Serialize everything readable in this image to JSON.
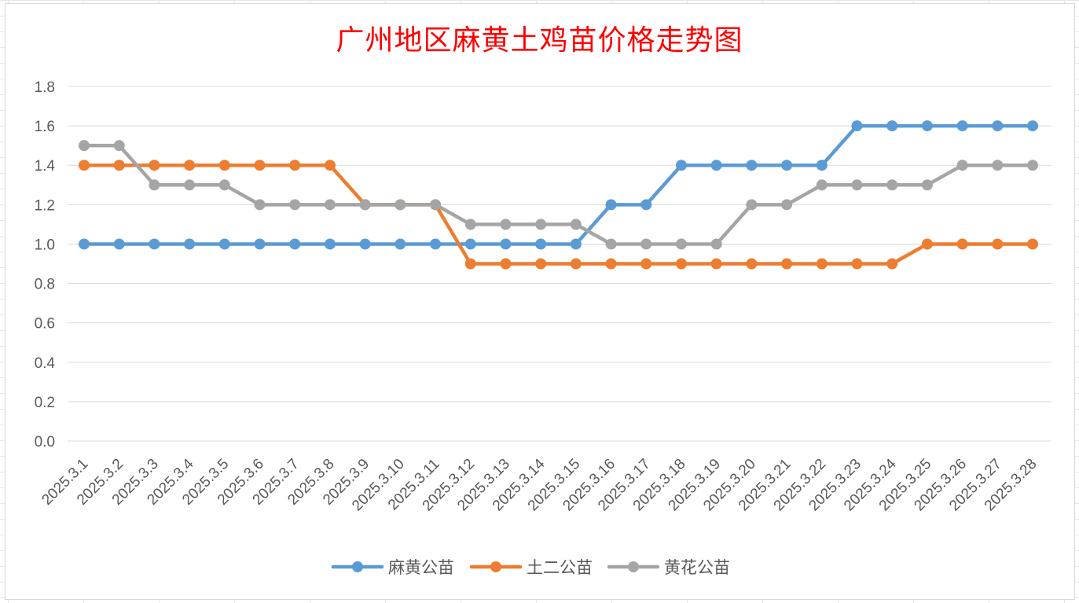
{
  "chart_data": {
    "type": "line",
    "title": "广州地区麻黄土鸡苗价格走势图",
    "xlabel": "",
    "ylabel": "",
    "categories": [
      "2025.3.1",
      "2025.3.2",
      "2025.3.3",
      "2025.3.4",
      "2025.3.5",
      "2025.3.6",
      "2025.3.7",
      "2025.3.8",
      "2025.3.9",
      "2025.3.10",
      "2025.3.11",
      "2025.3.12",
      "2025.3.13",
      "2025.3.14",
      "2025.3.15",
      "2025.3.16",
      "2025.3.17",
      "2025.3.18",
      "2025.3.19",
      "2025.3.20",
      "2025.3.21",
      "2025.3.22",
      "2025.3.23",
      "2025.3.24",
      "2025.3.25",
      "2025.3.26",
      "2025.3.27",
      "2025.3.28"
    ],
    "ylim": [
      0,
      1.8
    ],
    "yticks": [
      "0.0",
      "0.2",
      "0.4",
      "0.6",
      "0.8",
      "1.0",
      "1.2",
      "1.4",
      "1.6",
      "1.8"
    ],
    "grid": true,
    "legend_position": "bottom",
    "series": [
      {
        "name": "麻黄公苗",
        "color": "#5b9bd5",
        "values": [
          1.0,
          1.0,
          1.0,
          1.0,
          1.0,
          1.0,
          1.0,
          1.0,
          1.0,
          1.0,
          1.0,
          1.0,
          1.0,
          1.0,
          1.0,
          1.2,
          1.2,
          1.4,
          1.4,
          1.4,
          1.4,
          1.4,
          1.6,
          1.6,
          1.6,
          1.6,
          1.6,
          1.6
        ]
      },
      {
        "name": "土二公苗",
        "color": "#ed7d31",
        "values": [
          1.4,
          1.4,
          1.4,
          1.4,
          1.4,
          1.4,
          1.4,
          1.4,
          1.2,
          1.2,
          1.2,
          0.9,
          0.9,
          0.9,
          0.9,
          0.9,
          0.9,
          0.9,
          0.9,
          0.9,
          0.9,
          0.9,
          0.9,
          0.9,
          1.0,
          1.0,
          1.0,
          1.0
        ]
      },
      {
        "name": "黄花公苗",
        "color": "#a5a5a5",
        "values": [
          1.5,
          1.5,
          1.3,
          1.3,
          1.3,
          1.2,
          1.2,
          1.2,
          1.2,
          1.2,
          1.2,
          1.1,
          1.1,
          1.1,
          1.1,
          1.0,
          1.0,
          1.0,
          1.0,
          1.2,
          1.2,
          1.3,
          1.3,
          1.3,
          1.3,
          1.4,
          1.4,
          1.4
        ]
      }
    ]
  }
}
